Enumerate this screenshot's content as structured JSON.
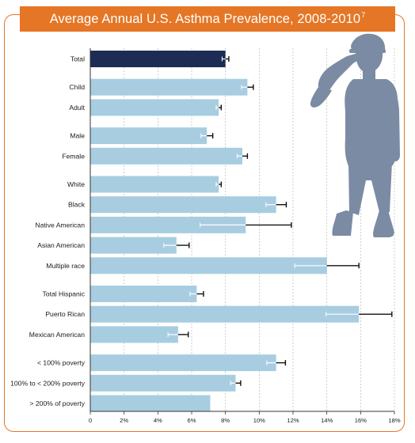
{
  "chart_data": {
    "type": "bar",
    "orientation": "horizontal",
    "title": "Average Annual U.S. Asthma Prevalence, 2008-2010",
    "title_superscript": "7",
    "xlabel": "",
    "ylabel": "",
    "xlim": [
      0,
      18
    ],
    "x_ticks": [
      "0",
      "2%",
      "4%",
      "6%",
      "8%",
      "10%",
      "12%",
      "14%",
      "16%",
      "18%"
    ],
    "grid": "vertical dashed",
    "groups": [
      {
        "items": [
          {
            "label": "Total",
            "value": 8.0,
            "err": 0.2,
            "highlight": true
          }
        ]
      },
      {
        "items": [
          {
            "label": "Child",
            "value": 9.3,
            "err": 0.35
          },
          {
            "label": "Adult",
            "value": 7.6,
            "err": 0.15
          }
        ]
      },
      {
        "items": [
          {
            "label": "Male",
            "value": 6.9,
            "err": 0.35
          },
          {
            "label": "Female",
            "value": 9.0,
            "err": 0.3
          }
        ]
      },
      {
        "items": [
          {
            "label": "White",
            "value": 7.6,
            "err": 0.15
          },
          {
            "label": "Black",
            "value": 11.0,
            "err": 0.6
          },
          {
            "label": "Native American",
            "value": 9.2,
            "err": 2.7
          },
          {
            "label": "Asian American",
            "value": 5.1,
            "err": 0.75
          },
          {
            "label": "Multiple race",
            "value": 14.0,
            "err": 1.9
          }
        ]
      },
      {
        "items": [
          {
            "label": "Total Hispanic",
            "value": 6.3,
            "err": 0.4
          },
          {
            "label": "Puerto Rican",
            "value": 15.9,
            "err": 1.95
          },
          {
            "label": "Mexican American",
            "value": 5.2,
            "err": 0.6
          }
        ]
      },
      {
        "items": [
          {
            "label": "< 100% poverty",
            "value": 11.0,
            "err": 0.55
          },
          {
            "label": "100% to < 200% poverty",
            "value": 8.6,
            "err": 0.3
          },
          {
            "label": "> 200% of poverty",
            "value": 7.1,
            "err": 0
          }
        ]
      }
    ],
    "colors": {
      "bar": "#a8cde1",
      "highlight_bar": "#1d2c55",
      "error_bar": "#111111",
      "error_bar_inner": "#ffffff",
      "grid": "#b8b8b8",
      "axis": "#333333"
    }
  },
  "illustration": {
    "name": "saluting-soldier-silhouette",
    "color": "#7b8ba4"
  },
  "frame": {
    "border_color": "#e57626",
    "banner_color": "#e57626"
  }
}
